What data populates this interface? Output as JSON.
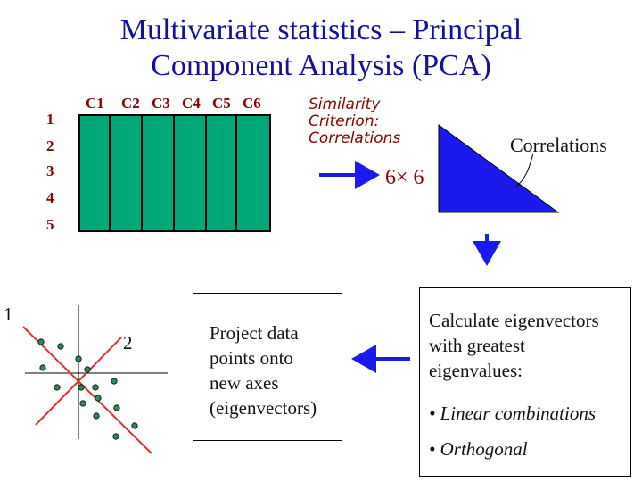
{
  "title": {
    "line1": "Multivariate statistics – Principal",
    "line2": "Component Analysis (PCA)"
  },
  "matrix": {
    "columns": [
      "C1",
      "C2",
      "C3",
      "C4",
      "C5",
      "C6"
    ],
    "rows": [
      "1",
      "2",
      "3",
      "4",
      "5"
    ],
    "color": "#00a878"
  },
  "criterion": {
    "line1": "Similarity",
    "line2": "Criterion:",
    "line3": "Correlations"
  },
  "correlation_matrix": {
    "size_label": "6× 6",
    "label": "Correlations",
    "color": "#1a1aee"
  },
  "eigen_box": {
    "line1": "Calculate eigenvectors",
    "line2": "with greatest",
    "line3": "eigenvalues:",
    "bullet1": "• Linear combinations",
    "bullet2": "• Orthogonal"
  },
  "project_box": {
    "line1": "Project data",
    "line2": "points onto",
    "line3": "new axes",
    "line4": "(eigenvectors)"
  },
  "scatter": {
    "axis1_label": "1",
    "axis2_label": "2",
    "point_color": "#2e8b57",
    "axis_color": "#e03030"
  },
  "arrow_color": "#1a1aee"
}
